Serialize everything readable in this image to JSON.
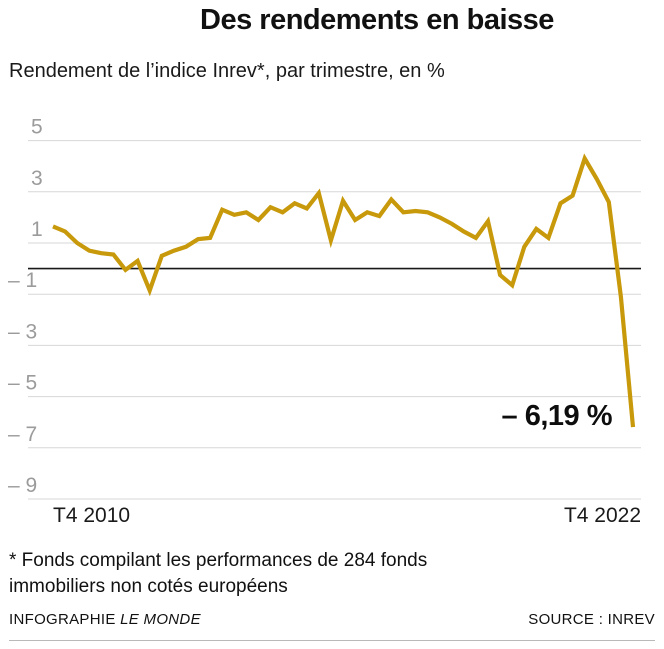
{
  "chart_data": {
    "type": "line",
    "title": "Des rendements en baisse",
    "subtitle": "Rendement de l’indice Inrev*, par trimestre, en %",
    "x_axis": {
      "start_label": "T4 2010",
      "end_label": "T4 2022"
    },
    "y_axis": {
      "ylim": [
        -9.5,
        5.5
      ],
      "zero_line": true,
      "ticks": [
        {
          "value": 5,
          "label": "5"
        },
        {
          "value": 3,
          "label": "3"
        },
        {
          "value": 1,
          "label": "1"
        },
        {
          "value": -1,
          "label": "– 1"
        },
        {
          "value": -3,
          "label": "– 3"
        },
        {
          "value": -5,
          "label": "– 5"
        },
        {
          "value": -7,
          "label": "– 7"
        },
        {
          "value": -9,
          "label": "– 9"
        }
      ]
    },
    "grid": true,
    "legend": "none",
    "series": [
      {
        "name": "Rendement de l’indice Inrev",
        "color": "#C7990B",
        "values": [
          1.65,
          1.45,
          1.0,
          0.7,
          0.6,
          0.55,
          -0.05,
          0.3,
          -0.85,
          0.5,
          0.7,
          0.85,
          1.15,
          1.2,
          2.3,
          2.1,
          2.2,
          1.9,
          2.4,
          2.2,
          2.55,
          2.35,
          2.95,
          1.1,
          2.65,
          1.9,
          2.2,
          2.05,
          2.7,
          2.2,
          2.25,
          2.2,
          2.0,
          1.75,
          1.45,
          1.2,
          1.85,
          -0.25,
          -0.65,
          0.85,
          1.55,
          1.2,
          2.55,
          2.85,
          4.3,
          3.5,
          2.6,
          -1.1,
          -6.19
        ]
      }
    ],
    "annotation": {
      "text": "– 6,19 %",
      "value": -6.19
    },
    "colors": {
      "grid": "#d7d7d7",
      "zero_line": "#191919",
      "tick_text": "#9b9b9b"
    }
  },
  "footnote": {
    "line1": "* Fonds compilant les performances de 284 fonds",
    "line2": "immobiliers non cotés européens"
  },
  "credits": {
    "left_prefix": "INFOGRAPHIE ",
    "left_source": "LE MONDE",
    "right": "SOURCE : INREV"
  }
}
